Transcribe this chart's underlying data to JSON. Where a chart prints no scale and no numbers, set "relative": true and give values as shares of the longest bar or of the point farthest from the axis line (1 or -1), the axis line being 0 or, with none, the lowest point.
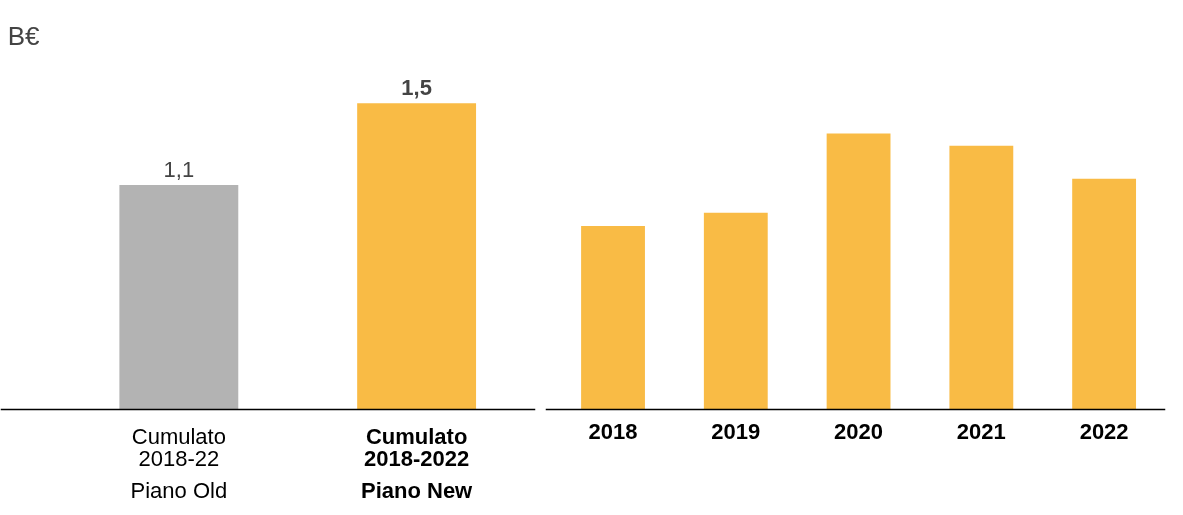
{
  "chart_data": [
    {
      "type": "bar",
      "ylabel": "B€",
      "categories": [
        "Cumulato\n2018-22\nPiano Old",
        "Cumulato\n2018-2022\nPiano New"
      ],
      "values": [
        1.1,
        1.5
      ],
      "colors": [
        "#b3b3b3",
        "#f9bb45"
      ],
      "value_labels": [
        "1,1",
        "1,5"
      ],
      "grid": false
    },
    {
      "type": "bar",
      "relative": true,
      "categories": [
        "2018",
        "2019",
        "2020",
        "2021",
        "2022"
      ],
      "values": [
        0.665,
        0.713,
        1,
        0.956,
        0.836
      ],
      "color": "#f9bb45",
      "grid": false
    }
  ]
}
